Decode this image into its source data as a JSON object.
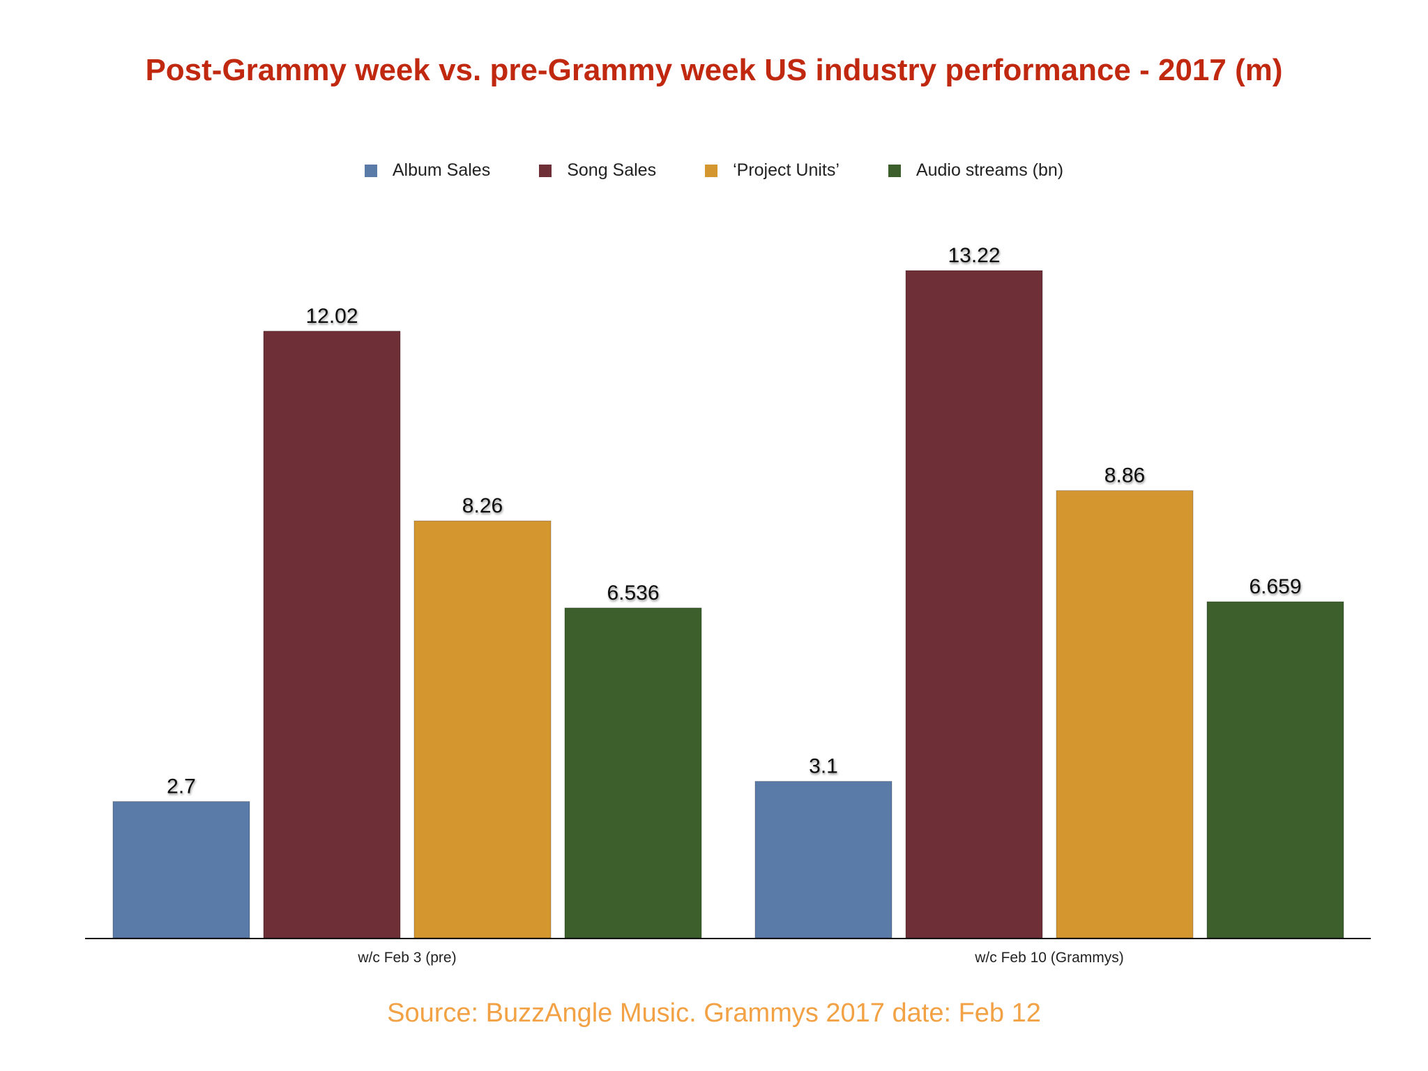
{
  "chart_data": {
    "type": "bar",
    "title": "Post-Grammy week vs. pre-Grammy week US industry performance - 2017 (m)",
    "categories": [
      "w/c Feb 3 (pre)",
      "w/c Feb 10 (Grammys)"
    ],
    "series": [
      {
        "name": "Album Sales",
        "values": [
          2.7,
          3.1
        ],
        "labels": [
          "2.7",
          "3.1"
        ],
        "color": "#5a7aa8"
      },
      {
        "name": "Song Sales",
        "values": [
          12.02,
          13.22
        ],
        "labels": [
          "12.02",
          "13.22"
        ],
        "color": "#6e2f37"
      },
      {
        "name": "‘Project Units’",
        "values": [
          8.26,
          8.86
        ],
        "labels": [
          "8.26",
          "8.86"
        ],
        "color": "#d4962f"
      },
      {
        "name": "Audio streams (bn)",
        "values": [
          6.536,
          6.659
        ],
        "labels": [
          "6.536",
          "6.659"
        ],
        "color": "#3c5f2c"
      }
    ],
    "ylim": [
      0,
      13.22
    ],
    "grid": false,
    "legend_position": "top"
  },
  "source": "Source: BuzzAngle Music. Grammys 2017 date: Feb 12",
  "colors": {
    "title": "#c0280f",
    "source": "#f2a144",
    "axis": "#111111"
  }
}
